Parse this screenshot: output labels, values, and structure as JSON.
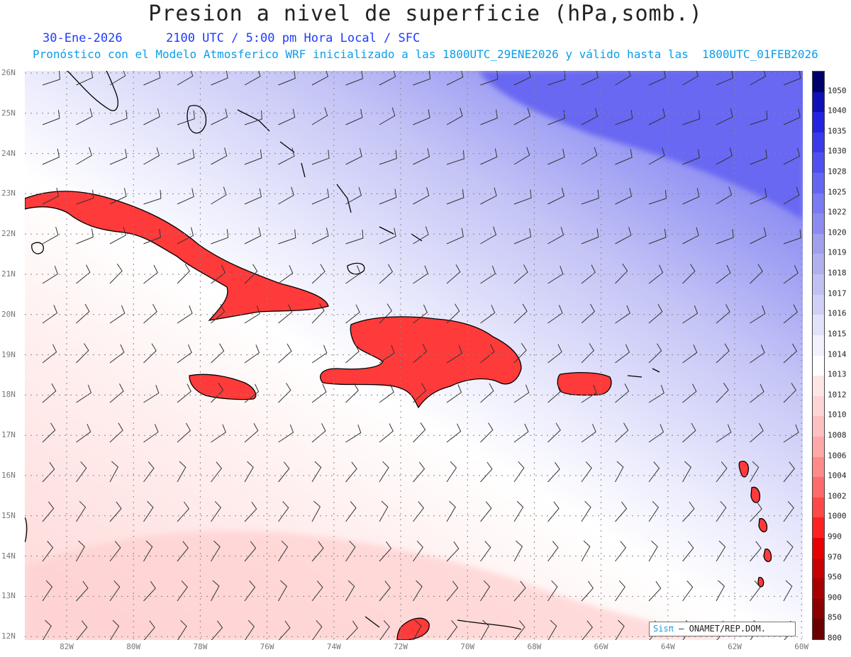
{
  "title": "Presion a nivel de superficie (hPa,somb.)",
  "date_line": "30-Ene-2026      2100 UTC / 5:00 pm Hora Local / SFC",
  "model_line": "Pronóstico con el Modelo Atmosferico WRF inicializado a las 1800UTC_29ENE2026 y válido hasta las  1800UTC_01FEB2026",
  "lat_labels": [
    "26N",
    "25N",
    "24N",
    "23N",
    "22N",
    "21N",
    "20N",
    "19N",
    "18N",
    "17N",
    "16N",
    "15N",
    "14N",
    "13N",
    "12N"
  ],
  "lon_labels": [
    "82W",
    "80W",
    "78W",
    "76W",
    "74W",
    "72W",
    "70W",
    "68W",
    "66W",
    "64W",
    "62W",
    "60W"
  ],
  "legend_levels": [
    "800",
    "850",
    "900",
    "950",
    "970",
    "990",
    "1000",
    "1002",
    "1004",
    "1006",
    "1008",
    "1010",
    "1012",
    "1013",
    "1014",
    "1015",
    "1016",
    "1017",
    "1018",
    "1019",
    "1020",
    "1022",
    "1025",
    "1028",
    "1030",
    "1035",
    "1040",
    "1050"
  ],
  "legend_colors": [
    "#6b0000",
    "#8a0000",
    "#a80000",
    "#c80000",
    "#e80000",
    "#ff2020",
    "#ff4848",
    "#ff6a6a",
    "#ff8a8a",
    "#ffa8a8",
    "#ffc0c0",
    "#ffd4d4",
    "#ffe6e6",
    "#ffffff",
    "#f2f2ff",
    "#e2e2fa",
    "#d0d0f6",
    "#c0c0f2",
    "#b0b0ef",
    "#a0a0ec",
    "#8c8cf0",
    "#7a7af2",
    "#6565f4",
    "#5050f0",
    "#3a3aec",
    "#2424e0",
    "#1010b8",
    "#00006a"
  ],
  "credit_brand": "Sisπ",
  "credit_text": "– ONAMET/REP.DOM."
}
